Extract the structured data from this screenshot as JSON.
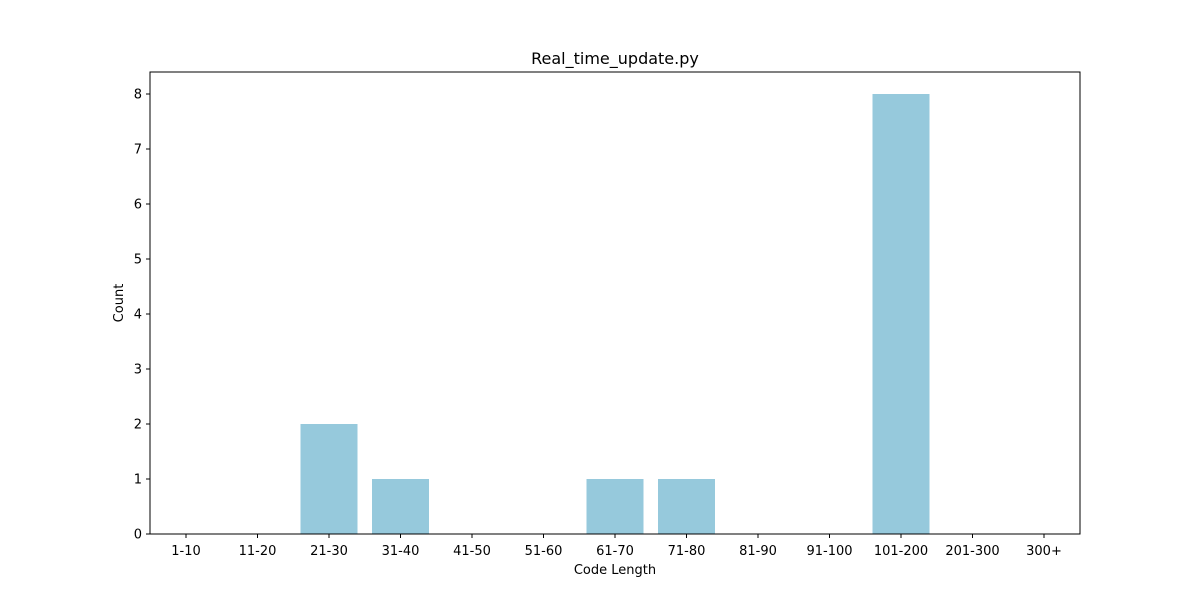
{
  "chart_data": {
    "type": "bar",
    "title": "Real_time_update.py",
    "xlabel": "Code Length",
    "ylabel": "Count",
    "categories": [
      "1-10",
      "11-20",
      "21-30",
      "31-40",
      "41-50",
      "51-60",
      "61-70",
      "71-80",
      "81-90",
      "91-100",
      "101-200",
      "201-300",
      "300+"
    ],
    "values": [
      0,
      0,
      2,
      1,
      0,
      0,
      1,
      1,
      0,
      0,
      8,
      0,
      0
    ],
    "ylim": [
      0,
      8.4
    ],
    "yticks": [
      0,
      1,
      2,
      3,
      4,
      5,
      6,
      7,
      8
    ],
    "grid": false,
    "bar_color": "#96c9dc"
  }
}
